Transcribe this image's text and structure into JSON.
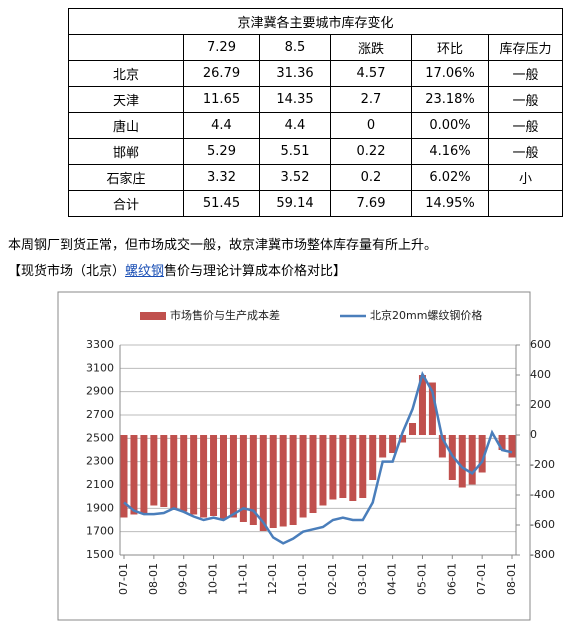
{
  "table": {
    "title": "京津冀各主要城市库存变化",
    "header": [
      "7.29",
      "8.5",
      "涨跌",
      "环比",
      "库存压力"
    ],
    "rows": [
      [
        "北京",
        "26.79",
        "31.36",
        "4.57",
        "17.06%",
        "一般"
      ],
      [
        "天津",
        "11.65",
        "14.35",
        "2.7",
        "23.18%",
        "一般"
      ],
      [
        "唐山",
        "4.4",
        "4.4",
        "0",
        "0.00%",
        "一般"
      ],
      [
        "邯郸",
        "5.29",
        "5.51",
        "0.22",
        "4.16%",
        "一般"
      ],
      [
        "石家庄",
        "3.32",
        "3.52",
        "0.2",
        "6.02%",
        "小"
      ],
      [
        "合计",
        "51.45",
        "59.14",
        "7.69",
        "14.95%"
      ]
    ]
  },
  "paragraph": "本周钢厂到货正常，但市场成交一般，故京津冀市场整体库存量有所上升。",
  "heading": {
    "before": "【现货市场（北京）",
    "link": "螺纹钢",
    "after": "售价与理论计算成本价格对比】"
  },
  "chart_data": {
    "type": "combo",
    "categories": [
      "07-01",
      null,
      null,
      "08-01",
      null,
      null,
      "09-01",
      null,
      null,
      "10-01",
      null,
      null,
      "11-01",
      null,
      null,
      "12-01",
      null,
      null,
      "01-01",
      null,
      null,
      "02-01",
      null,
      null,
      "03-01",
      null,
      null,
      "04-01",
      null,
      null,
      "05-01",
      null,
      null,
      "06-01",
      null,
      null,
      "07-01",
      null,
      null,
      "08-01"
    ],
    "series": [
      {
        "name": "市场售价与生产成本差",
        "type": "bar",
        "axis": "y2",
        "color": "#c0504d",
        "values": [
          -550,
          -530,
          -520,
          -470,
          -480,
          -500,
          -510,
          -530,
          -550,
          -540,
          -560,
          -550,
          -580,
          -600,
          -640,
          -620,
          -610,
          -600,
          -550,
          -520,
          -470,
          -430,
          -420,
          -440,
          -420,
          -300,
          -150,
          -120,
          -50,
          80,
          400,
          350,
          -150,
          -300,
          -350,
          -330,
          -250,
          0,
          -100,
          -150
        ]
      },
      {
        "name": "北京20mm螺纹钢价格",
        "type": "line",
        "axis": "y",
        "color": "#4a7ebb",
        "values": [
          1950,
          1880,
          1850,
          1850,
          1860,
          1900,
          1870,
          1830,
          1800,
          1820,
          1800,
          1850,
          1900,
          1880,
          1780,
          1650,
          1600,
          1640,
          1700,
          1720,
          1740,
          1800,
          1820,
          1800,
          1800,
          1950,
          2300,
          2300,
          2550,
          2750,
          3050,
          2900,
          2500,
          2350,
          2250,
          2200,
          2300,
          2550,
          2400,
          2380
        ]
      }
    ],
    "ylim": [
      1500,
      3300
    ],
    "yticks": [
      1500,
      1700,
      1900,
      2100,
      2300,
      2500,
      2700,
      2900,
      3100,
      3300
    ],
    "y2lim": [
      -800,
      600
    ],
    "y2ticks": [
      -800,
      -600,
      -400,
      -200,
      0,
      200,
      400,
      600
    ],
    "grid": true
  }
}
